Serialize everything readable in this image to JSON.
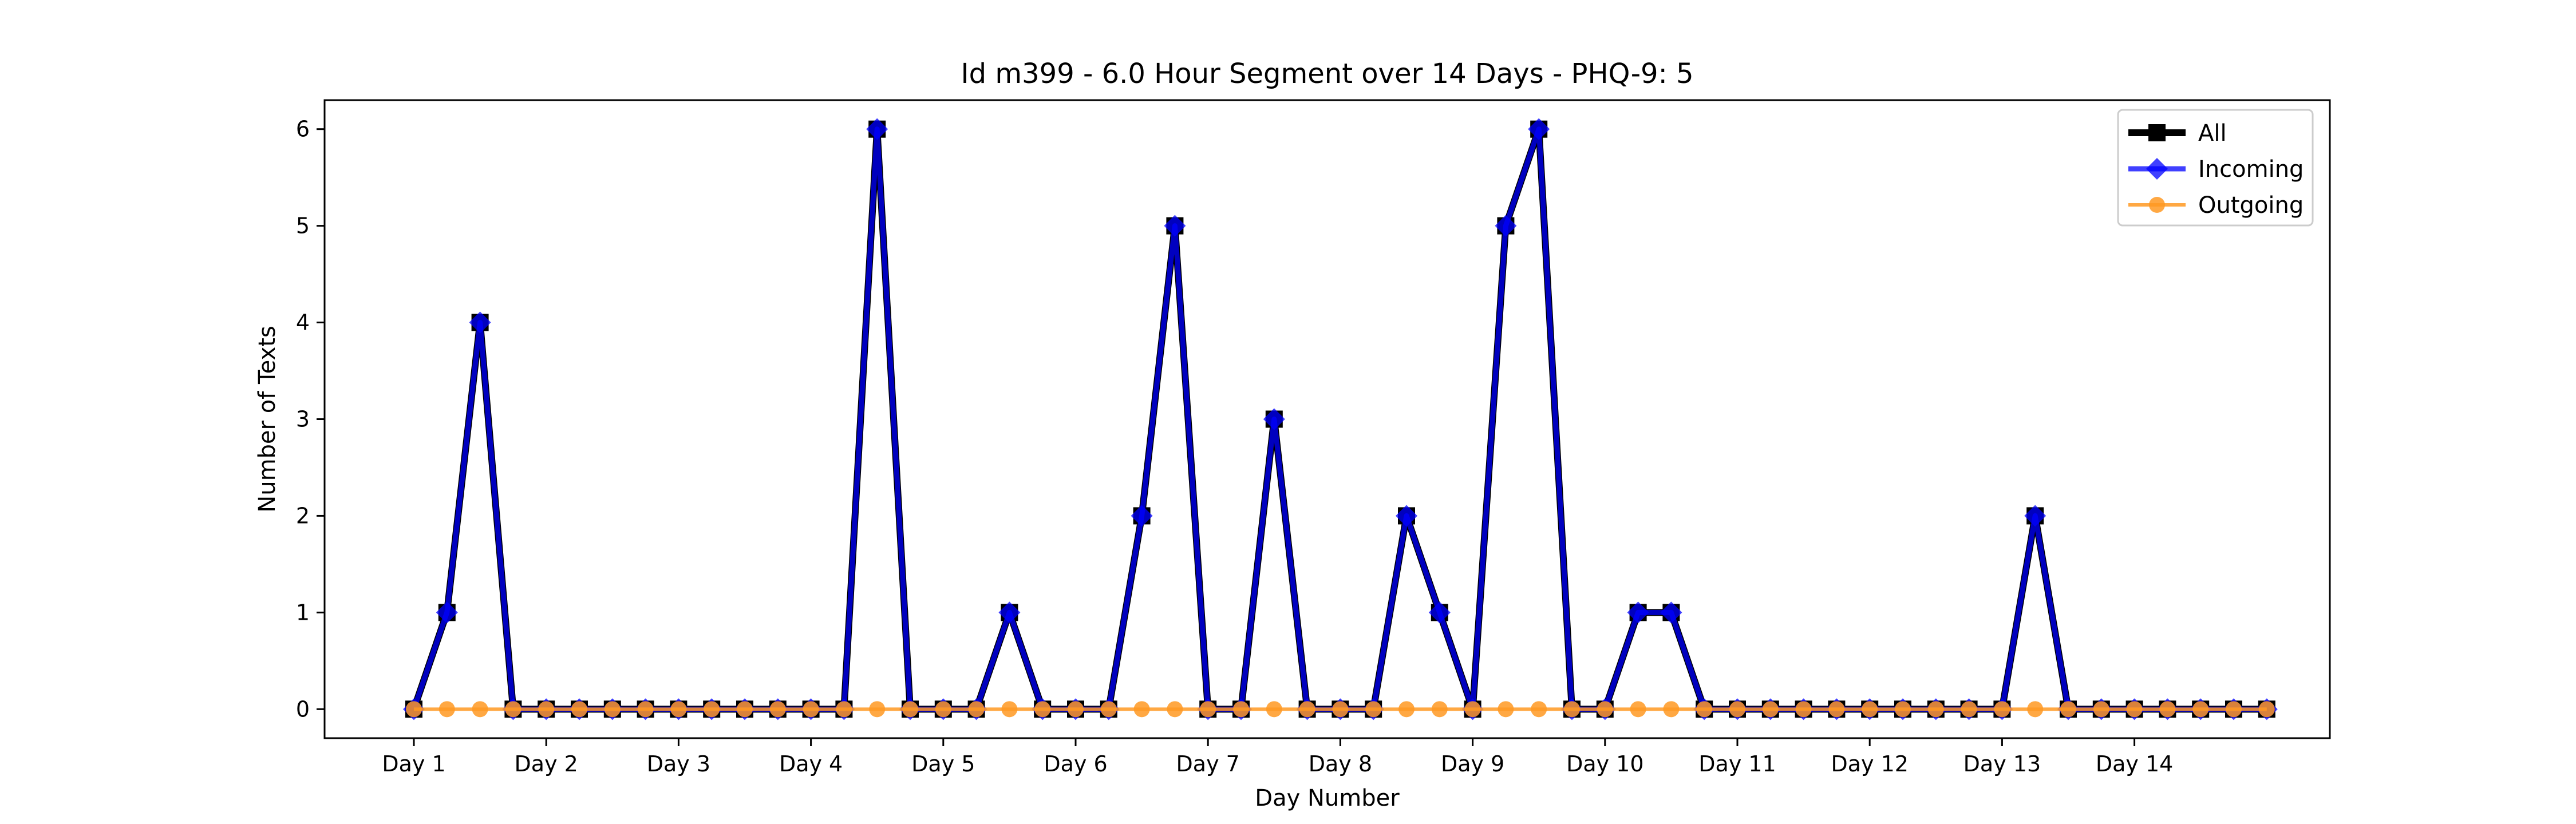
{
  "chart_data": {
    "type": "line",
    "title": "Id m399 - 6.0 Hour Segment over 14 Days - PHQ-9: 5",
    "xlabel": "Day Number",
    "ylabel": "Number of Texts",
    "ylim": [
      -0.3,
      6.3
    ],
    "yticks": [
      0,
      1,
      2,
      3,
      4,
      5,
      6
    ],
    "xticks": [
      "Day 1",
      "Day 2",
      "Day 3",
      "Day 4",
      "Day 5",
      "Day 6",
      "Day 7",
      "Day 8",
      "Day 9",
      "Day 10",
      "Day 11",
      "Day 12",
      "Day 13",
      "Day 14"
    ],
    "grid": false,
    "legend_position": "top-right",
    "series": [
      {
        "name": "All",
        "color": "#000000",
        "marker": "square",
        "values": [
          0,
          1,
          4,
          0,
          0,
          0,
          0,
          0,
          0,
          0,
          0,
          0,
          0,
          0,
          6,
          0,
          0,
          0,
          1,
          0,
          0,
          0,
          2,
          5,
          0,
          0,
          3,
          0,
          0,
          0,
          2,
          1,
          0,
          5,
          6,
          0,
          0,
          1,
          1,
          0,
          0,
          0,
          0,
          0,
          0,
          0,
          0,
          0,
          0,
          2,
          0,
          0,
          0,
          0,
          0,
          0,
          0
        ]
      },
      {
        "name": "Incoming",
        "color": "#0000ff",
        "marker": "diamond",
        "values": [
          0,
          1,
          4,
          0,
          0,
          0,
          0,
          0,
          0,
          0,
          0,
          0,
          0,
          0,
          6,
          0,
          0,
          0,
          1,
          0,
          0,
          0,
          2,
          5,
          0,
          0,
          3,
          0,
          0,
          0,
          2,
          1,
          0,
          5,
          6,
          0,
          0,
          1,
          1,
          0,
          0,
          0,
          0,
          0,
          0,
          0,
          0,
          0,
          0,
          2,
          0,
          0,
          0,
          0,
          0,
          0,
          0
        ]
      },
      {
        "name": "Outgoing",
        "color": "#ff9922",
        "marker": "circle",
        "values": [
          0,
          0,
          0,
          0,
          0,
          0,
          0,
          0,
          0,
          0,
          0,
          0,
          0,
          0,
          0,
          0,
          0,
          0,
          0,
          0,
          0,
          0,
          0,
          0,
          0,
          0,
          0,
          0,
          0,
          0,
          0,
          0,
          0,
          0,
          0,
          0,
          0,
          0,
          0,
          0,
          0,
          0,
          0,
          0,
          0,
          0,
          0,
          0,
          0,
          0,
          0,
          0,
          0,
          0,
          0,
          0,
          0
        ]
      }
    ]
  }
}
